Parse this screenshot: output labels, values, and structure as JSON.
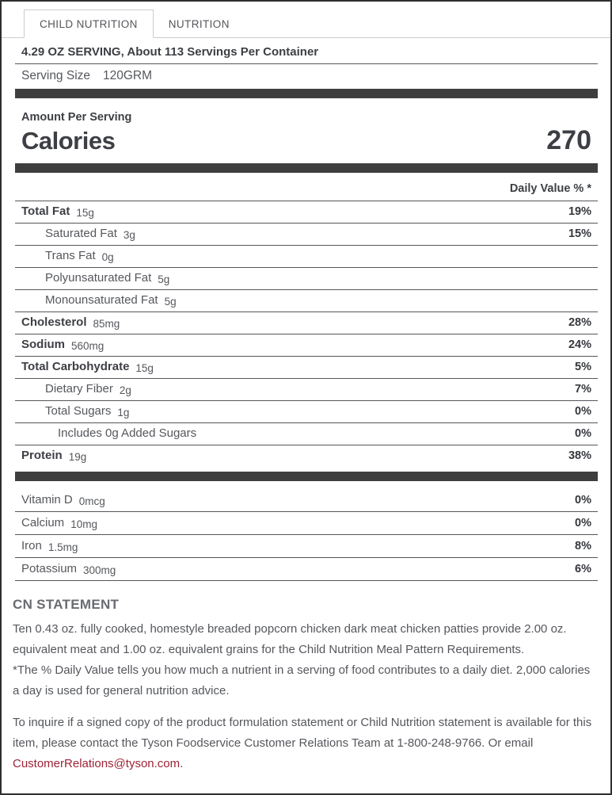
{
  "tabs": [
    {
      "label": "CHILD NUTRITION",
      "active": true
    },
    {
      "label": "NUTRITION",
      "active": false
    }
  ],
  "serving": {
    "heading": "4.29 OZ SERVING, About 113 Servings Per Container",
    "size_label": "Serving Size",
    "size_value": "120GRM"
  },
  "calories": {
    "section_label": "Amount Per Serving",
    "label": "Calories",
    "value": "270"
  },
  "table": {
    "dv_header": "Daily Value % *",
    "nutrients": [
      {
        "label": "Total Fat",
        "amount": "15g",
        "dv": "19%",
        "bold": true,
        "indent": 0
      },
      {
        "label": "Saturated Fat",
        "amount": "3g",
        "dv": "15%",
        "bold": false,
        "indent": 1
      },
      {
        "label": "Trans Fat",
        "amount": "0g",
        "dv": "",
        "bold": false,
        "indent": 1
      },
      {
        "label": "Polyunsaturated Fat",
        "amount": "5g",
        "dv": "",
        "bold": false,
        "indent": 1
      },
      {
        "label": "Monounsaturated Fat",
        "amount": "5g",
        "dv": "",
        "bold": false,
        "indent": 1
      },
      {
        "label": "Cholesterol",
        "amount": "85mg",
        "dv": "28%",
        "bold": true,
        "indent": 0
      },
      {
        "label": "Sodium",
        "amount": "560mg",
        "dv": "24%",
        "bold": true,
        "indent": 0
      },
      {
        "label": "Total Carbohydrate",
        "amount": "15g",
        "dv": "5%",
        "bold": true,
        "indent": 0
      },
      {
        "label": "Dietary Fiber",
        "amount": "2g",
        "dv": "7%",
        "bold": false,
        "indent": 1
      },
      {
        "label": "Total Sugars",
        "amount": "1g",
        "dv": "0%",
        "bold": false,
        "indent": 1
      },
      {
        "label": "Includes 0g Added Sugars",
        "amount": "",
        "dv": "0%",
        "bold": false,
        "indent": 2
      },
      {
        "label": "Protein",
        "amount": "19g",
        "dv": "38%",
        "bold": true,
        "indent": 0
      }
    ],
    "vitamins": [
      {
        "label": "Vitamin D",
        "amount": "0mcg",
        "dv": "0%",
        "bold": false,
        "indent": 0
      },
      {
        "label": "Calcium",
        "amount": "10mg",
        "dv": "0%",
        "bold": false,
        "indent": 0
      },
      {
        "label": "Iron",
        "amount": "1.5mg",
        "dv": "8%",
        "bold": false,
        "indent": 0
      },
      {
        "label": "Potassium",
        "amount": "300mg",
        "dv": "6%",
        "bold": false,
        "indent": 0
      }
    ]
  },
  "cn_statement": {
    "heading": "CN STATEMENT",
    "body_lines": [
      "Ten 0.43 oz. fully cooked, homestyle breaded popcorn chicken dark meat chicken patties provide 2.00 oz. equivalent meat and 1.00 oz. equivalent grains for the Child Nutrition Meal Pattern Requirements.",
      "*The % Daily Value tells you how much a nutrient in a serving of food contributes to a daily diet. 2,000 calories a day is used for general nutrition advice."
    ],
    "contact_pre": "To inquire if a signed copy of the product formulation statement or Child Nutrition statement is available for this item, please contact the Tyson Foodservice Customer Relations Team at 1-800-248-9766. Or email ",
    "contact_email": "CustomerRelations@tyson.com",
    "contact_post": "."
  },
  "colors": {
    "accent_red": "#9d2235",
    "bar_dark": "#3e3e3e",
    "divider": "#55565a",
    "text_dark": "#3d3f44",
    "text_mid": "#55575c",
    "tab_border": "#cbcccd"
  }
}
